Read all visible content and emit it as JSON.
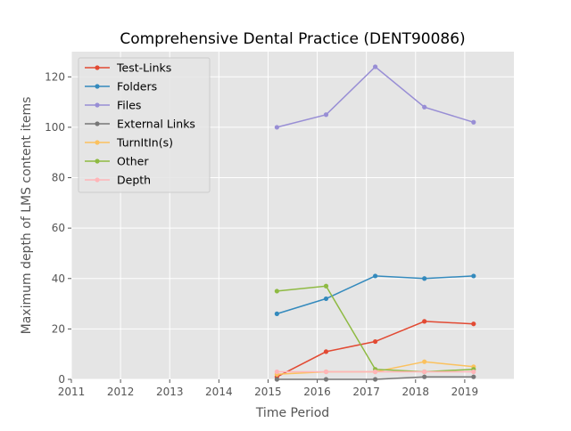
{
  "chart_data": {
    "type": "line",
    "title": "Comprehensive Dental Practice (DENT90086)",
    "xlabel": "Time Period",
    "ylabel": "Maximum depth of LMS content items",
    "xlim": [
      2011,
      2020
    ],
    "ylim": [
      0,
      130
    ],
    "xticks": [
      2011,
      2012,
      2013,
      2014,
      2015,
      2016,
      2017,
      2018,
      2019
    ],
    "yticks": [
      0,
      20,
      40,
      60,
      80,
      100,
      120
    ],
    "grid": true,
    "legend_position": "upper-left",
    "series": [
      {
        "name": "Test-Links",
        "color": "#e24a33",
        "x": [
          2015.18,
          2016.18,
          2017.18,
          2018.18,
          2019.18
        ],
        "y": [
          1,
          11,
          15,
          23,
          22
        ]
      },
      {
        "name": "Folders",
        "color": "#348abd",
        "x": [
          2015.18,
          2016.18,
          2017.18,
          2018.18,
          2019.18
        ],
        "y": [
          26,
          32,
          41,
          40,
          41
        ]
      },
      {
        "name": "Files",
        "color": "#988ed5",
        "x": [
          2015.18,
          2016.18,
          2017.18,
          2018.18,
          2019.18
        ],
        "y": [
          100,
          105,
          124,
          108,
          102
        ]
      },
      {
        "name": "External Links",
        "color": "#777777",
        "x": [
          2015.18,
          2016.18,
          2017.18,
          2018.18,
          2019.18
        ],
        "y": [
          0,
          0,
          0,
          1,
          1
        ]
      },
      {
        "name": "TurnItIn(s)",
        "color": "#fbc15e",
        "x": [
          2015.18,
          2016.18,
          2017.18,
          2018.18,
          2019.18
        ],
        "y": [
          2,
          3,
          3,
          7,
          5
        ]
      },
      {
        "name": "Other",
        "color": "#8eba42",
        "x": [
          2015.18,
          2016.18,
          2017.18,
          2018.18,
          2019.18
        ],
        "y": [
          35,
          37,
          4,
          3,
          4
        ]
      },
      {
        "name": "Depth",
        "color": "#ffb5b8",
        "x": [
          2015.18,
          2016.18,
          2017.18,
          2018.18,
          2019.18
        ],
        "y": [
          3,
          3,
          3,
          3,
          3
        ]
      }
    ]
  }
}
